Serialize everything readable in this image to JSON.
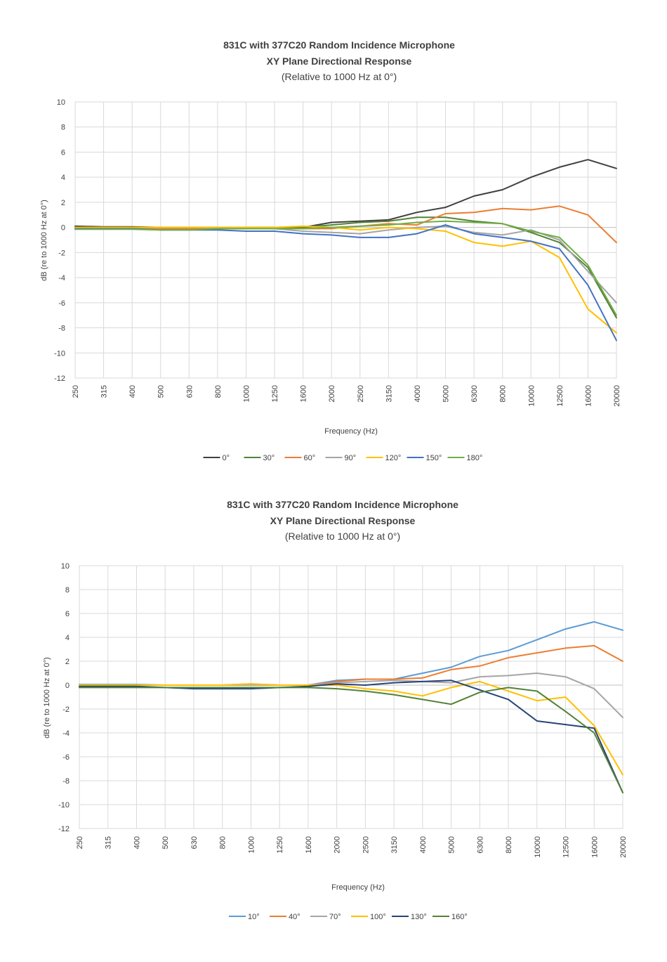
{
  "chart_data": [
    {
      "type": "line",
      "title": "831C with 377C20 Random Incidence Microphone",
      "subtitle": "XY Plane Directional Response",
      "subtitle2": "(Relative to 1000 Hz at 0°)",
      "xlabel": "Frequency (Hz)",
      "ylabel": "dB (re to 1000 Hz at 0°)",
      "ylim": [
        -12,
        10
      ],
      "yticks": [
        "10",
        "8",
        "6",
        "4",
        "2",
        "0",
        "-2",
        "-4",
        "-6",
        "-8",
        "-10",
        "-12"
      ],
      "categories": [
        "250",
        "315",
        "400",
        "500",
        "630",
        "800",
        "1000",
        "1250",
        "1600",
        "2000",
        "2500",
        "3150",
        "4000",
        "5000",
        "6300",
        "8000",
        "10000",
        "12500",
        "16000",
        "20000"
      ],
      "grid": true,
      "legend_position": "bottom",
      "series": [
        {
          "name": "0°",
          "color": "#404040",
          "values": [
            0.1,
            0.05,
            0.05,
            0.0,
            0.0,
            0.0,
            0.0,
            0.0,
            0.0,
            0.4,
            0.5,
            0.6,
            1.2,
            1.6,
            2.5,
            3.0,
            4.0,
            4.8,
            5.4,
            4.7
          ]
        },
        {
          "name": "30°",
          "color": "#548235",
          "values": [
            0.0,
            0.0,
            0.0,
            0.0,
            0.0,
            0.0,
            0.0,
            0.0,
            0.0,
            0.2,
            0.4,
            0.5,
            0.8,
            0.8,
            0.5,
            0.3,
            -0.4,
            -1.2,
            -3.2,
            -7.2
          ]
        },
        {
          "name": "60°",
          "color": "#ed7d31",
          "values": [
            -0.1,
            -0.1,
            -0.1,
            -0.1,
            -0.1,
            -0.1,
            -0.1,
            -0.1,
            -0.1,
            -0.1,
            0.1,
            0.3,
            0.2,
            1.1,
            1.2,
            1.5,
            1.4,
            1.7,
            1.0,
            -1.2
          ]
        },
        {
          "name": "90°",
          "color": "#a5a5a5",
          "values": [
            0.0,
            0.0,
            0.0,
            0.0,
            0.0,
            0.0,
            0.0,
            -0.1,
            -0.3,
            -0.4,
            -0.5,
            -0.2,
            0.0,
            0.1,
            -0.4,
            -0.6,
            -0.2,
            -1.0,
            -3.5,
            -6.0
          ]
        },
        {
          "name": "120°",
          "color": "#ffc000",
          "values": [
            0.0,
            0.0,
            0.0,
            0.0,
            0.0,
            0.0,
            0.0,
            0.0,
            0.1,
            0.0,
            -0.2,
            0.0,
            -0.1,
            -0.3,
            -1.2,
            -1.5,
            -1.1,
            -2.4,
            -6.5,
            -8.4
          ]
        },
        {
          "name": "150°",
          "color": "#4472c4",
          "values": [
            -0.1,
            -0.1,
            -0.1,
            -0.2,
            -0.2,
            -0.2,
            -0.3,
            -0.3,
            -0.5,
            -0.6,
            -0.8,
            -0.8,
            -0.5,
            0.2,
            -0.5,
            -0.8,
            -1.1,
            -1.7,
            -4.6,
            -9.0
          ]
        },
        {
          "name": "180°",
          "color": "#70ad47",
          "values": [
            -0.15,
            -0.15,
            -0.15,
            -0.2,
            -0.2,
            -0.1,
            -0.1,
            -0.1,
            -0.1,
            0.0,
            0.1,
            0.2,
            0.4,
            0.5,
            0.4,
            0.3,
            -0.3,
            -0.8,
            -3.0,
            -7.0
          ]
        }
      ]
    },
    {
      "type": "line",
      "title": "831C with 377C20 Random Incidence Microphone",
      "subtitle": "XY Plane Directional Response",
      "subtitle2": "(Relative to 1000 Hz at 0°)",
      "xlabel": "Frequency (Hz)",
      "ylabel": "dB (re to 1000 Hz at 0°)",
      "ylim": [
        -12,
        10
      ],
      "yticks": [
        "10",
        "8",
        "6",
        "4",
        "2",
        "0",
        "-2",
        "-4",
        "-6",
        "-8",
        "-10",
        "-12"
      ],
      "categories": [
        "250",
        "315",
        "400",
        "500",
        "630",
        "800",
        "1000",
        "1250",
        "1600",
        "2000",
        "2500",
        "3150",
        "4000",
        "5000",
        "6300",
        "8000",
        "10000",
        "12500",
        "16000",
        "20000"
      ],
      "grid": true,
      "legend_position": "bottom",
      "series": [
        {
          "name": "10°",
          "color": "#5b9bd5",
          "values": [
            0.05,
            0.05,
            0.05,
            0.0,
            0.0,
            0.0,
            0.0,
            0.0,
            0.0,
            0.4,
            0.5,
            0.5,
            1.0,
            1.5,
            2.4,
            2.9,
            3.8,
            4.7,
            5.3,
            4.6
          ]
        },
        {
          "name": "40°",
          "color": "#ed7d31",
          "values": [
            0.0,
            0.0,
            0.0,
            0.0,
            0.0,
            0.0,
            0.1,
            0.0,
            0.0,
            0.3,
            0.5,
            0.5,
            0.6,
            1.3,
            1.6,
            2.3,
            2.7,
            3.1,
            3.3,
            2.0
          ]
        },
        {
          "name": "70°",
          "color": "#a5a5a5",
          "values": [
            0.0,
            0.0,
            0.0,
            0.0,
            0.0,
            0.0,
            0.0,
            0.0,
            0.0,
            0.2,
            0.3,
            0.4,
            0.3,
            0.2,
            0.7,
            0.8,
            1.0,
            0.7,
            -0.3,
            -2.7
          ]
        },
        {
          "name": "100°",
          "color": "#ffc000",
          "values": [
            0.0,
            0.0,
            0.0,
            0.0,
            0.0,
            0.0,
            0.1,
            0.0,
            0.0,
            0.0,
            -0.3,
            -0.5,
            -0.9,
            -0.2,
            0.3,
            -0.5,
            -1.3,
            -1.0,
            -3.4,
            -7.5
          ]
        },
        {
          "name": "130°",
          "color": "#264478",
          "values": [
            -0.1,
            -0.1,
            -0.1,
            -0.2,
            -0.3,
            -0.3,
            -0.3,
            -0.2,
            -0.1,
            0.1,
            0.0,
            0.2,
            0.3,
            0.4,
            -0.4,
            -1.2,
            -3.0,
            -3.3,
            -3.6,
            -9.0
          ]
        },
        {
          "name": "160°",
          "color": "#548235",
          "values": [
            -0.2,
            -0.2,
            -0.2,
            -0.2,
            -0.2,
            -0.2,
            -0.2,
            -0.2,
            -0.2,
            -0.3,
            -0.5,
            -0.8,
            -1.2,
            -1.6,
            -0.6,
            -0.2,
            -0.5,
            -2.2,
            -4.0,
            -9.0
          ]
        }
      ]
    }
  ]
}
